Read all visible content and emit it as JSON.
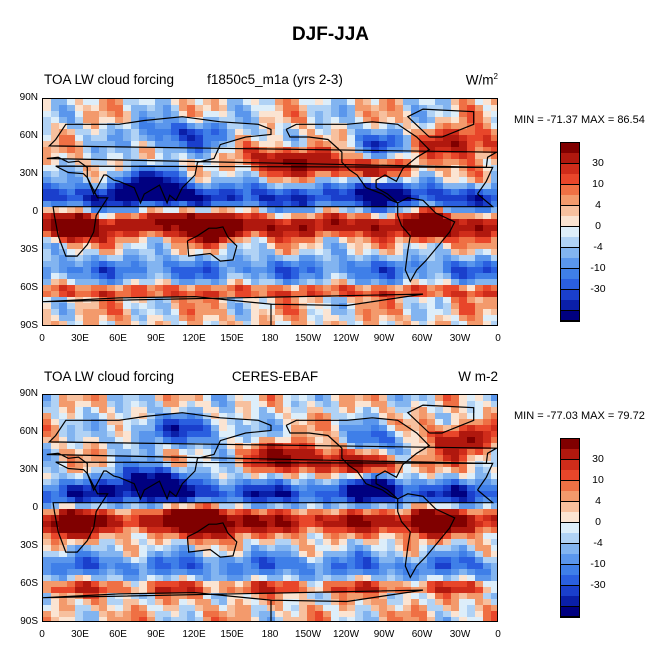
{
  "figure_title": "DJF-JJA",
  "panels": [
    {
      "left_title": "TOA LW cloud forcing",
      "center_title": "f1850c5_m1a (yrs 2-3)",
      "units_base": "W/m",
      "units_sup": "2",
      "minmax": "MIN = -71.37 MAX =  86.54"
    },
    {
      "left_title": "TOA LW cloud forcing",
      "center_title": "CERES-EBAF",
      "units_base": "W m-2",
      "units_sup": "",
      "minmax": "MIN = -77.03 MAX =  79.72"
    }
  ],
  "chart_data": {
    "type": "heatmap",
    "title": "DJF-JJA",
    "variable": "TOA LW cloud forcing",
    "lat_ticks": [
      "90N",
      "60N",
      "30N",
      "0",
      "30S",
      "60S",
      "90S"
    ],
    "lon_ticks": [
      "0",
      "30E",
      "60E",
      "90E",
      "120E",
      "150E",
      "180",
      "150W",
      "120W",
      "90W",
      "60W",
      "30W",
      "0"
    ],
    "colorbar_labels": [
      "30",
      "10",
      "4",
      "0",
      "-4",
      "-10",
      "-30"
    ],
    "colorbar_levels": [
      -40,
      -35,
      -30,
      -25,
      -20,
      -15,
      -10,
      -5,
      -2,
      0,
      2,
      4,
      8,
      12,
      16,
      20,
      30,
      40
    ],
    "colors": [
      "#000080",
      "#0a1fa8",
      "#1a3fcc",
      "#2a5fe0",
      "#3f7fe8",
      "#5a96ec",
      "#82b4f0",
      "#b0d2f5",
      "#ddeefa",
      "#fbe4d2",
      "#f7c09e",
      "#f39a6c",
      "#ef7044",
      "#e8462a",
      "#cf2c1a",
      "#b0180e",
      "#800000"
    ],
    "series": [
      {
        "name": "f1850c5_m1a (yrs 2-3)",
        "min": -71.37,
        "max": 86.54
      },
      {
        "name": "CERES-EBAF",
        "min": -77.03,
        "max": 79.72
      }
    ]
  }
}
